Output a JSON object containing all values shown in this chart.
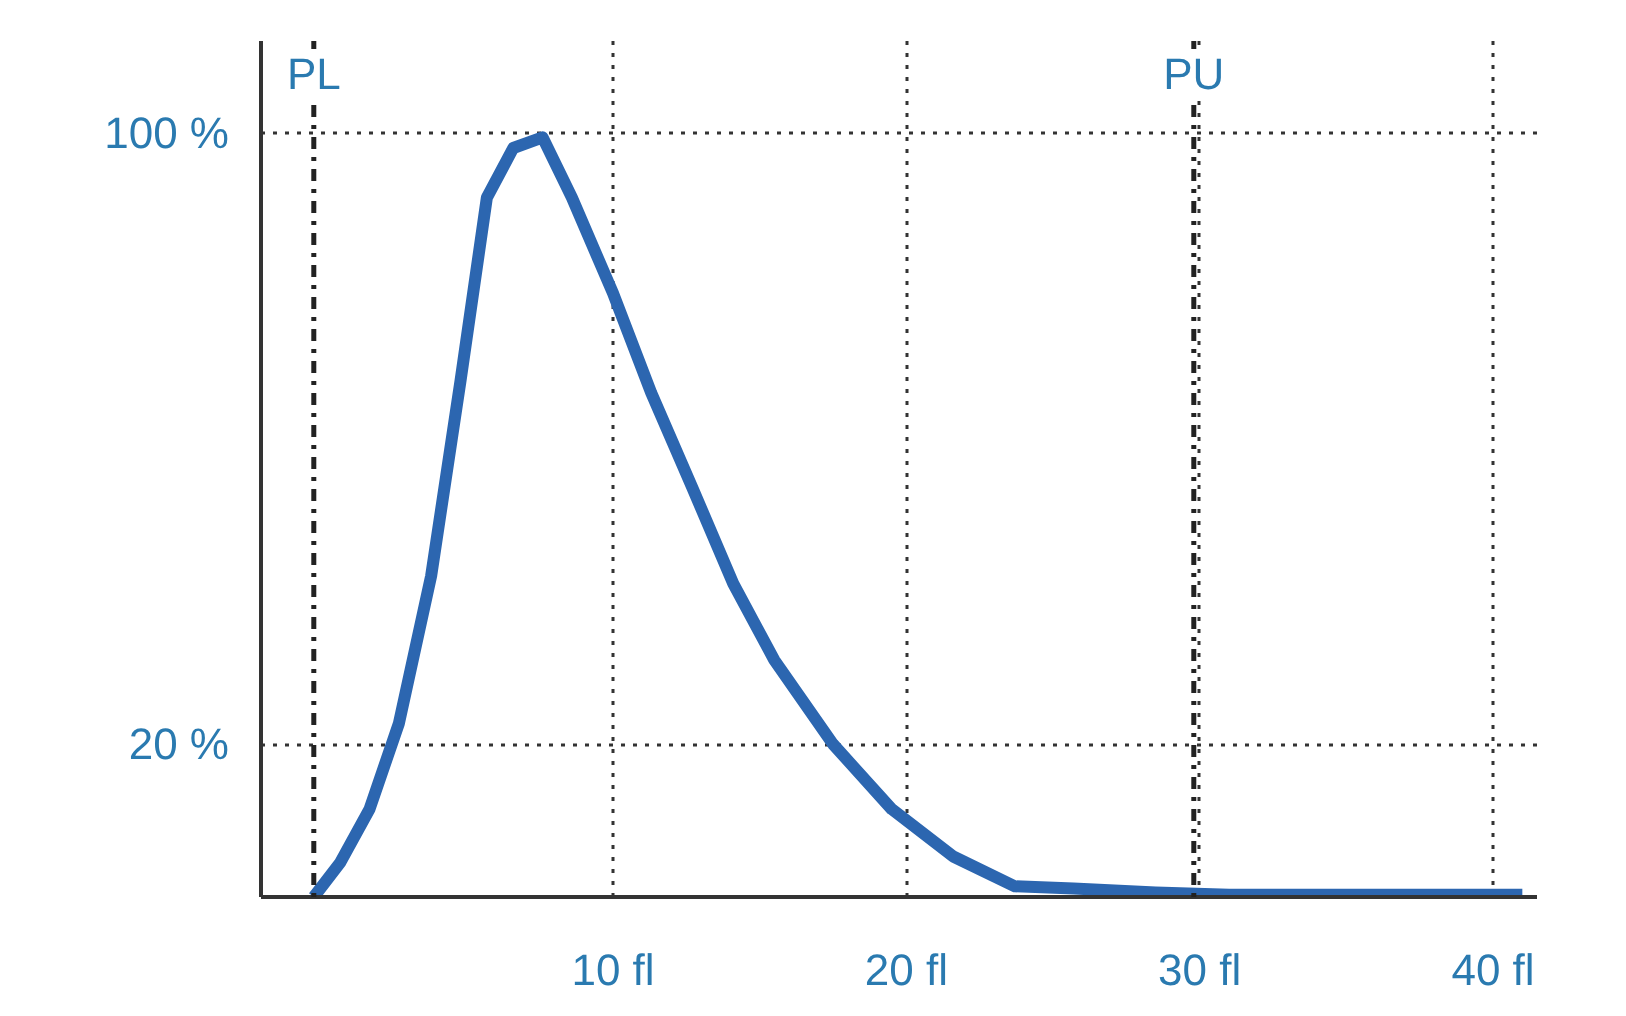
{
  "chart_data": {
    "type": "line",
    "x": [
      -0.2,
      0.7,
      1.7,
      2.7,
      3.8,
      4.8,
      5.7,
      6.6,
      7.6,
      8.6,
      10.0,
      11.3,
      12.7,
      14.1,
      15.5,
      17.5,
      19.5,
      21.6,
      23.7,
      25.7,
      28.5,
      31.0,
      41.0
    ],
    "series": [
      {
        "color": "#2c66b0",
        "values": [
          0,
          4.5,
          11.5,
          22.7,
          42,
          67.5,
          91.5,
          98,
          99.4,
          91.5,
          79,
          66,
          53.6,
          41,
          31,
          20,
          11.5,
          5.3,
          1.4,
          1.1,
          0.6,
          0.3,
          0.3
        ]
      }
    ],
    "xlim": [
      -2,
      41.5
    ],
    "ylim": [
      0,
      112
    ],
    "xticks": [
      {
        "value": 10,
        "label": "10 fl"
      },
      {
        "value": 20,
        "label": "20 fl"
      },
      {
        "value": 30,
        "label": "30 fl"
      },
      {
        "value": 40,
        "label": "40 fl"
      }
    ],
    "yticks": [
      {
        "value": 20,
        "label": "20 %"
      },
      {
        "value": 100,
        "label": "100 %"
      }
    ],
    "grid": true,
    "marker": "none",
    "line_style": "solid",
    "ref_lines": [
      {
        "axis": "x",
        "value": -0.2,
        "label": "PL",
        "line_style": "dashdot",
        "color": "#222222"
      },
      {
        "axis": "x",
        "value": 29.8,
        "label": "PU",
        "line_style": "dashdot",
        "color": "#222222"
      }
    ]
  }
}
